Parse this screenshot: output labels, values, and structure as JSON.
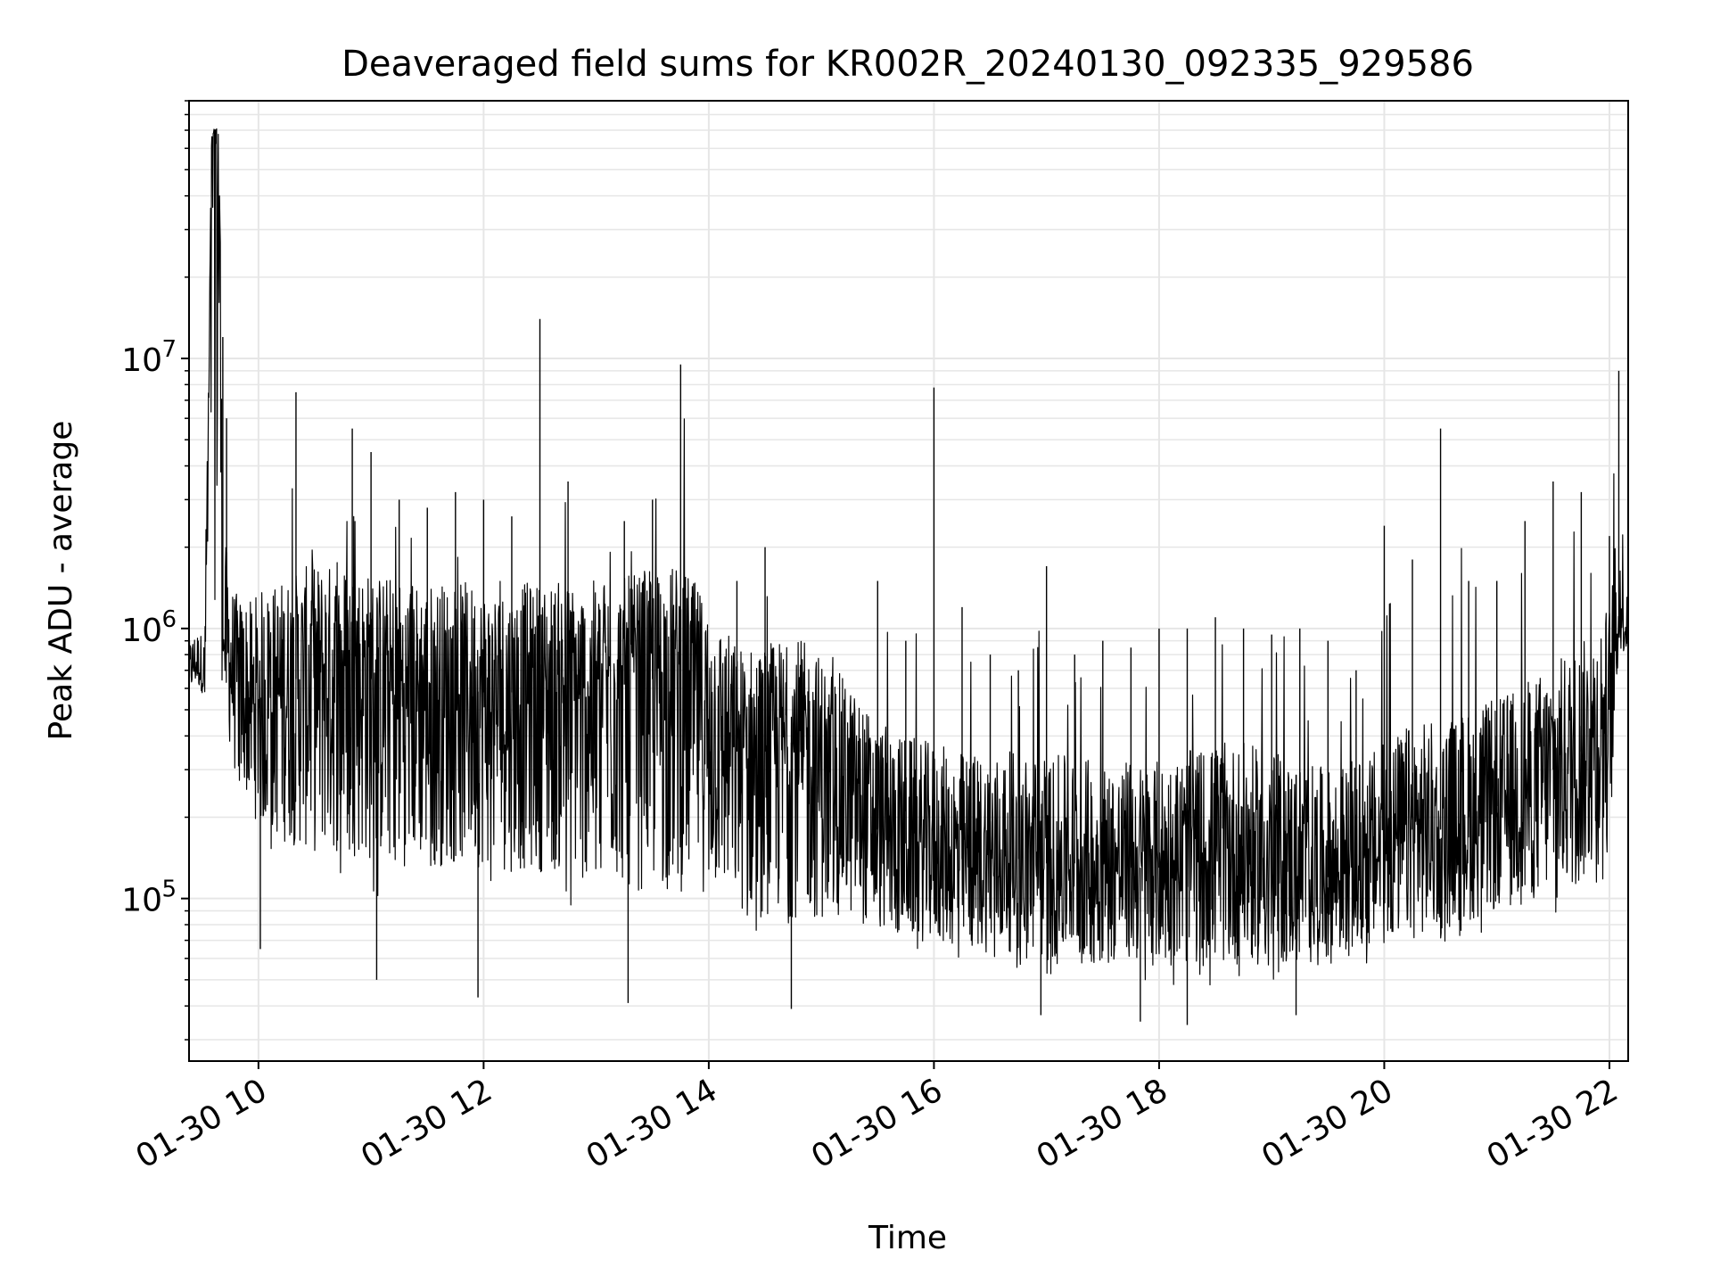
{
  "chart_data": {
    "type": "line",
    "title": "Deaveraged field sums for KR002R_20240130_092335_929586",
    "xlabel": "Time",
    "ylabel": "Peak ADU - average",
    "y_scale": "log",
    "ylim": [
      25000,
      90000000
    ],
    "xlim": [
      "2024-01-30 09:23",
      "2024-01-30 22:10"
    ],
    "grid": true,
    "line_color": "#000000",
    "grid_color": "#e6e6e6",
    "x_ticks": [
      {
        "value": "2024-01-30 10:00",
        "label": "01-30 10"
      },
      {
        "value": "2024-01-30 12:00",
        "label": "01-30 12"
      },
      {
        "value": "2024-01-30 14:00",
        "label": "01-30 14"
      },
      {
        "value": "2024-01-30 16:00",
        "label": "01-30 16"
      },
      {
        "value": "2024-01-30 18:00",
        "label": "01-30 18"
      },
      {
        "value": "2024-01-30 20:00",
        "label": "01-30 20"
      },
      {
        "value": "2024-01-30 22:00",
        "label": "01-30 22"
      }
    ],
    "y_ticks": [
      {
        "value": 100000,
        "base": "10",
        "exp": "5"
      },
      {
        "value": 1000000,
        "base": "10",
        "exp": "6"
      },
      {
        "value": 10000000,
        "base": "10",
        "exp": "7"
      }
    ],
    "series": [
      {
        "x": [
          "2024-01-30 09:23",
          "2024-01-30 09:27",
          "2024-01-30 09:31",
          "2024-01-30 09:33",
          "2024-01-30 09:35",
          "2024-01-30 09:37",
          "2024-01-30 09:39",
          "2024-01-30 09:41",
          "2024-01-30 09:43",
          "2024-01-30 09:45",
          "2024-01-30 09:47",
          "2024-01-30 09:50",
          "2024-01-30 09:55",
          "2024-01-30 10:00",
          "2024-01-30 10:10",
          "2024-01-30 10:20",
          "2024-01-30 10:30",
          "2024-01-30 10:40",
          "2024-01-30 10:50",
          "2024-01-30 11:00",
          "2024-01-30 11:15",
          "2024-01-30 11:30",
          "2024-01-30 11:45",
          "2024-01-30 12:00",
          "2024-01-30 12:15",
          "2024-01-30 12:30",
          "2024-01-30 12:45",
          "2024-01-30 13:00",
          "2024-01-30 13:15",
          "2024-01-30 13:30",
          "2024-01-30 13:45",
          "2024-01-30 14:00",
          "2024-01-30 14:15",
          "2024-01-30 14:30",
          "2024-01-30 14:45",
          "2024-01-30 15:00",
          "2024-01-30 15:15",
          "2024-01-30 15:30",
          "2024-01-30 15:45",
          "2024-01-30 16:00",
          "2024-01-30 16:15",
          "2024-01-30 16:30",
          "2024-01-30 16:45",
          "2024-01-30 17:00",
          "2024-01-30 17:15",
          "2024-01-30 17:30",
          "2024-01-30 17:45",
          "2024-01-30 18:00",
          "2024-01-30 18:15",
          "2024-01-30 18:30",
          "2024-01-30 18:45",
          "2024-01-30 19:00",
          "2024-01-30 19:15",
          "2024-01-30 19:30",
          "2024-01-30 19:45",
          "2024-01-30 20:00",
          "2024-01-30 20:15",
          "2024-01-30 20:30",
          "2024-01-30 20:45",
          "2024-01-30 21:00",
          "2024-01-30 21:15",
          "2024-01-30 21:30",
          "2024-01-30 21:45",
          "2024-01-30 22:00",
          "2024-01-30 22:05",
          "2024-01-30 22:10"
        ],
        "y_median": [
          700000,
          750000,
          650000,
          3000000,
          60000000,
          70000000,
          65000000,
          900000,
          800000,
          750000,
          700000,
          650000,
          500000,
          550000,
          600000,
          650000,
          700000,
          700000,
          700000,
          650000,
          620000,
          600000,
          600000,
          580000,
          580000,
          600000,
          600000,
          600000,
          620000,
          650000,
          700000,
          500000,
          350000,
          350000,
          380000,
          320000,
          250000,
          180000,
          160000,
          150000,
          140000,
          140000,
          140000,
          135000,
          135000,
          130000,
          130000,
          130000,
          140000,
          150000,
          150000,
          140000,
          130000,
          120000,
          130000,
          150000,
          180000,
          180000,
          200000,
          220000,
          250000,
          300000,
          350000,
          500000,
          1100000,
          1000000
        ],
        "y_low": [
          550000,
          600000,
          550000,
          500000,
          600000,
          600000,
          550000,
          500000,
          450000,
          300000,
          250000,
          220000,
          200000,
          150000,
          130000,
          120000,
          110000,
          110000,
          110000,
          100000,
          100000,
          100000,
          100000,
          100000,
          95000,
          95000,
          90000,
          90000,
          80000,
          75000,
          75000,
          80000,
          70000,
          65000,
          65000,
          65000,
          70000,
          65000,
          60000,
          60000,
          55000,
          55000,
          55000,
          50000,
          50000,
          50000,
          50000,
          48000,
          48000,
          47000,
          48000,
          48000,
          48000,
          50000,
          55000,
          58000,
          60000,
          65000,
          70000,
          75000,
          80000,
          85000,
          90000,
          120000,
          800000,
          750000
        ],
        "y_high": [
          900000,
          1000000,
          950000,
          6000000,
          68000000,
          72000000,
          70000000,
          12000000,
          6000000,
          1500000,
          1400000,
          1300000,
          1400000,
          1500000,
          1800000,
          7500000,
          2500000,
          1800000,
          5500000,
          4500000,
          3000000,
          2800000,
          3200000,
          3000000,
          2600000,
          14000000,
          3500000,
          2200000,
          2500000,
          3000000,
          9500000,
          2000000,
          1500000,
          2000000,
          1200000,
          1000000,
          800000,
          1500000,
          900000,
          7800000,
          1200000,
          800000,
          700000,
          1700000,
          800000,
          900000,
          850000,
          1000000,
          1000000,
          1100000,
          1000000,
          950000,
          1000000,
          900000,
          700000,
          2400000,
          1800000,
          5500000,
          1500000,
          1500000,
          2500000,
          3500000,
          3200000,
          2200000,
          9000000,
          1800000
        ],
        "min_spikes": [
          {
            "x": "2024-01-30 10:01",
            "y": 65000
          },
          {
            "x": "2024-01-30 11:03",
            "y": 50000
          },
          {
            "x": "2024-01-30 11:57",
            "y": 43000
          },
          {
            "x": "2024-01-30 13:17",
            "y": 41000
          },
          {
            "x": "2024-01-30 14:44",
            "y": 39000
          },
          {
            "x": "2024-01-30 16:57",
            "y": 37000
          },
          {
            "x": "2024-01-30 17:50",
            "y": 35000
          },
          {
            "x": "2024-01-30 18:15",
            "y": 34000
          },
          {
            "x": "2024-01-30 19:13",
            "y": 37000
          }
        ]
      }
    ]
  }
}
